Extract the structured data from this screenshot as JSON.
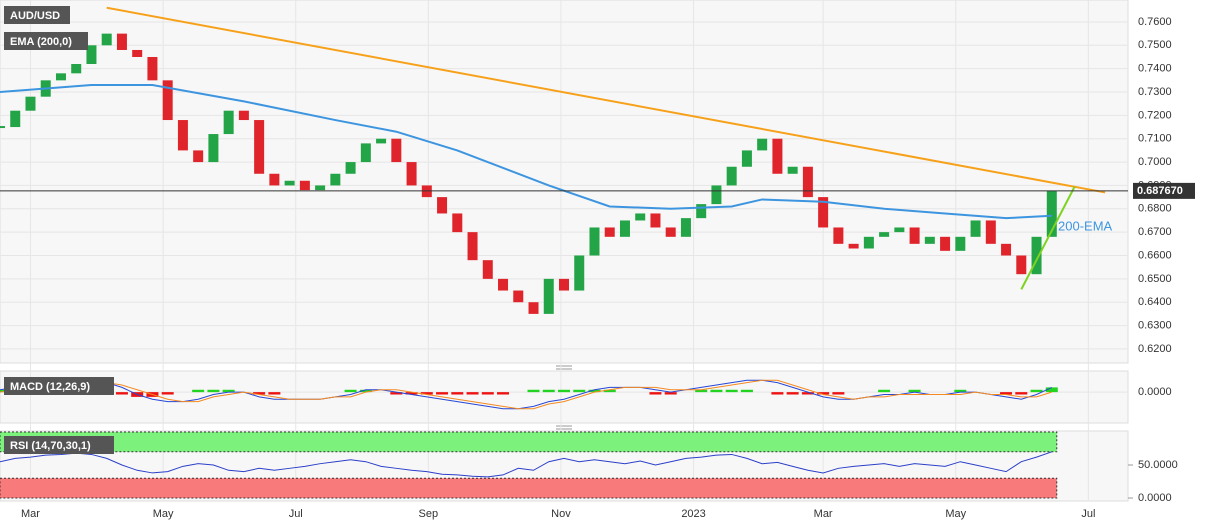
{
  "chart_data": {
    "type": "candlestick",
    "title": "AUD/USD",
    "x": [
      -2,
      -1,
      0,
      1,
      2,
      3,
      4,
      5,
      6,
      7,
      8,
      9,
      10,
      11,
      12,
      13,
      14,
      15,
      16,
      17,
      18,
      19,
      20,
      21,
      22,
      23,
      24,
      25,
      26,
      27,
      28,
      29,
      30,
      31,
      32,
      33,
      34,
      35,
      36,
      37,
      38,
      39,
      40,
      41,
      42,
      43,
      44,
      45,
      46,
      47,
      48,
      49,
      50,
      51,
      52,
      53,
      54,
      55,
      56,
      57,
      58,
      59,
      60,
      61,
      62,
      63,
      64,
      65,
      66,
      67
    ],
    "xlim": [
      -2,
      72
    ],
    "xticks": [
      {
        "value": 0,
        "label": "Mar"
      },
      {
        "value": 8.7,
        "label": "May"
      },
      {
        "value": 17.4,
        "label": "Jul"
      },
      {
        "value": 26.1,
        "label": "Sep"
      },
      {
        "value": 34.8,
        "label": "Nov"
      },
      {
        "value": 43.5,
        "label": "2023"
      },
      {
        "value": 52,
        "label": "Mar"
      },
      {
        "value": 60.7,
        "label": "May"
      },
      {
        "value": 69.4,
        "label": "Jul"
      }
    ],
    "ylim": [
      0.6144,
      0.7694
    ],
    "yticks": [
      {
        "value": 0.62,
        "label": "0.6200"
      },
      {
        "value": 0.63,
        "label": "0.6300"
      },
      {
        "value": 0.64,
        "label": "0.6400"
      },
      {
        "value": 0.65,
        "label": "0.6500"
      },
      {
        "value": 0.66,
        "label": "0.6600"
      },
      {
        "value": 0.67,
        "label": "0.6700"
      },
      {
        "value": 0.68,
        "label": "0.6800"
      },
      {
        "value": 0.69,
        "label": "0.6900"
      },
      {
        "value": 0.7,
        "label": "0.7000"
      },
      {
        "value": 0.71,
        "label": "0.7100"
      },
      {
        "value": 0.72,
        "label": "0.7200"
      },
      {
        "value": 0.73,
        "label": "0.7300"
      },
      {
        "value": 0.74,
        "label": "0.7400"
      },
      {
        "value": 0.75,
        "label": "0.7500"
      },
      {
        "value": 0.76,
        "label": "0.7600"
      }
    ],
    "grid": true,
    "up_color": "#22a447",
    "down_color": "#e0242b",
    "values": [
      0.715,
      0.722,
      0.728,
      0.735,
      0.738,
      0.742,
      0.75,
      0.755,
      0.748,
      0.745,
      0.735,
      0.718,
      0.705,
      0.7,
      0.712,
      0.722,
      0.718,
      0.695,
      0.69,
      0.692,
      0.688,
      0.69,
      0.695,
      0.7,
      0.708,
      0.71,
      0.7,
      0.69,
      0.685,
      0.678,
      0.67,
      0.658,
      0.65,
      0.645,
      0.64,
      0.635,
      0.65,
      0.645,
      0.66,
      0.672,
      0.668,
      0.675,
      0.678,
      0.672,
      0.668,
      0.676,
      0.682,
      0.69,
      0.698,
      0.705,
      0.71,
      0.695,
      0.698,
      0.685,
      0.672,
      0.665,
      0.663,
      0.668,
      0.67,
      0.672,
      0.665,
      0.668,
      0.662,
      0.668,
      0.675,
      0.665,
      0.66,
      0.652,
      0.668,
      0.6876
    ],
    "series": [
      {
        "name": "EMA (200,0)",
        "color": "#3d95e0",
        "x": [
          -2,
          4,
          8,
          14,
          20,
          24,
          28,
          34,
          38,
          42,
          46,
          48,
          52,
          56,
          60,
          64,
          67
        ],
        "values": [
          0.73,
          0.733,
          0.733,
          0.726,
          0.718,
          0.713,
          0.705,
          0.69,
          0.681,
          0.68,
          0.681,
          0.684,
          0.683,
          0.68,
          0.678,
          0.676,
          0.677
        ]
      }
    ],
    "trendlines": [
      {
        "color": "#f7a11a",
        "x": [
          5,
          70.5
        ],
        "values": [
          0.7661,
          0.687
        ]
      },
      {
        "color": "#7ed321",
        "x": [
          65,
          68.5
        ],
        "values": [
          0.6455,
          0.6895
        ]
      }
    ],
    "annotation": "200-EMA",
    "last_price": {
      "value": 0.68767,
      "label": "0.687670"
    },
    "macd": {
      "title": "MACD (12,26,9)",
      "ylim": [
        -0.0126,
        0.0085
      ],
      "yticks": [
        {
          "value": 0,
          "label": "0.0000"
        }
      ],
      "macd_color": "#2747d6",
      "signal_color": "#f58a1f",
      "up_color": "#22d322",
      "down_color": "#ee1111",
      "macd": [
        0.001,
        0.002,
        0.003,
        0.004,
        0.004,
        0.005,
        0.005,
        0.004,
        0.002,
        -0.001,
        -0.003,
        -0.004,
        -0.004,
        -0.003,
        -0.001,
        0,
        0,
        -0.002,
        -0.003,
        -0.003,
        -0.003,
        -0.003,
        -0.002,
        -0.001,
        0.001,
        0.001,
        0,
        -0.001,
        -0.002,
        -0.003,
        -0.004,
        -0.005,
        -0.006,
        -0.007,
        -0.007,
        -0.006,
        -0.004,
        -0.003,
        -0.001,
        0.001,
        0.002,
        0.002,
        0.002,
        0.001,
        0,
        0.001,
        0.002,
        0.003,
        0.004,
        0.005,
        0.005,
        0.004,
        0.002,
        0,
        -0.002,
        -0.003,
        -0.003,
        -0.002,
        -0.001,
        -0.001,
        0,
        -0.001,
        -0.001,
        0,
        0,
        -0.001,
        -0.002,
        -0.003,
        -0.001,
        0.002
      ],
      "signal": [
        0,
        0.001,
        0.002,
        0.003,
        0.004,
        0.004,
        0.005,
        0.004,
        0.003,
        0.001,
        -0.001,
        -0.003,
        -0.004,
        -0.004,
        -0.002,
        -0.001,
        0,
        -0.001,
        -0.002,
        -0.003,
        -0.003,
        -0.003,
        -0.002,
        -0.002,
        0,
        0.001,
        0.001,
        0,
        -0.001,
        -0.002,
        -0.003,
        -0.004,
        -0.005,
        -0.006,
        -0.007,
        -0.007,
        -0.005,
        -0.004,
        -0.002,
        0,
        0.001,
        0.002,
        0.002,
        0.002,
        0.001,
        0.001,
        0.001,
        0.002,
        0.003,
        0.004,
        0.005,
        0.005,
        0.003,
        0.001,
        -0.001,
        -0.002,
        -0.003,
        -0.002,
        -0.002,
        -0.001,
        -0.001,
        -0.001,
        -0.001,
        -0.001,
        0,
        -0.001,
        -0.001,
        -0.002,
        -0.002,
        0
      ],
      "histogram": [
        0.001,
        0.001,
        0.001,
        0.001,
        0,
        0.001,
        0,
        0,
        -0.001,
        -0.002,
        -0.002,
        -0.001,
        0,
        0.001,
        0.001,
        0.001,
        0,
        -0.001,
        -0.001,
        0,
        0,
        0,
        0,
        0.001,
        0.001,
        0,
        -0.001,
        -0.001,
        -0.001,
        -0.001,
        -0.001,
        -0.001,
        -0.001,
        -0.001,
        0,
        0.001,
        0.001,
        0.001,
        0.001,
        0.001,
        0.001,
        0,
        0,
        -0.001,
        -0.001,
        0,
        0.001,
        0.001,
        0.001,
        0.001,
        0,
        -0.001,
        -0.001,
        -0.001,
        -0.001,
        -0.001,
        0,
        0,
        0.001,
        0,
        0.001,
        0,
        0,
        0.001,
        0,
        0,
        -0.001,
        -0.001,
        0.001,
        0.002
      ]
    },
    "rsi": {
      "title": "RSI (14,70,30,1)",
      "ylim": [
        -3,
        100
      ],
      "yticks": [
        {
          "value": 0,
          "label": "0.0000"
        },
        {
          "value": 50,
          "label": "50.0000"
        }
      ],
      "color": "#2b3fc9",
      "bands": [
        {
          "from": 70,
          "to": 100,
          "color": "#7cf27c"
        },
        {
          "from": 0,
          "to": 30,
          "color": "#f87a7a"
        }
      ],
      "values": [
        55,
        60,
        62,
        65,
        66,
        68,
        66,
        60,
        50,
        42,
        38,
        40,
        48,
        52,
        50,
        42,
        40,
        45,
        42,
        45,
        48,
        52,
        55,
        58,
        55,
        48,
        45,
        42,
        40,
        36,
        35,
        33,
        32,
        35,
        45,
        42,
        55,
        60,
        55,
        58,
        55,
        52,
        56,
        50,
        55,
        60,
        62,
        65,
        66,
        60,
        52,
        54,
        48,
        42,
        38,
        45,
        48,
        50,
        52,
        48,
        52,
        50,
        48,
        55,
        50,
        45,
        40,
        55,
        62,
        70
      ]
    }
  }
}
